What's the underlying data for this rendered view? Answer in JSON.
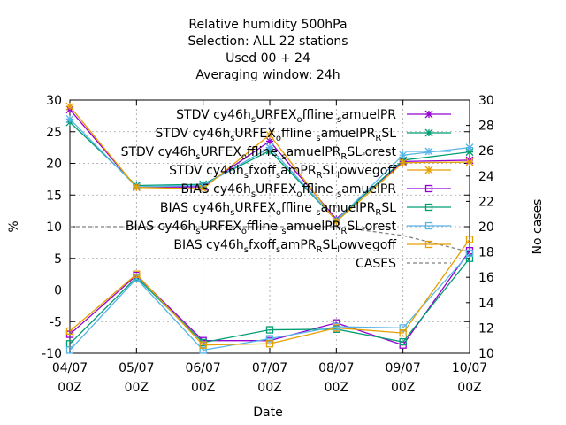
{
  "chart_data": {
    "type": "line",
    "title_lines": [
      "Relative humidity 500hPa",
      "Selection: ALL      22 stations",
      "Used  00 + 24",
      "Averaging window: 24h"
    ],
    "xlabel": "Date",
    "ylabel": "%",
    "y2label": "No cases",
    "categories": [
      [
        "04/07",
        "00Z"
      ],
      [
        "05/07",
        "00Z"
      ],
      [
        "06/07",
        "00Z"
      ],
      [
        "07/07",
        "00Z"
      ],
      [
        "08/07",
        "00Z"
      ],
      [
        "09/07",
        "00Z"
      ],
      [
        "10/07",
        "00Z"
      ]
    ],
    "ylim": [
      -10,
      30
    ],
    "yticks": [
      -10,
      -5,
      0,
      5,
      10,
      15,
      20,
      25,
      30
    ],
    "y2lim": [
      10,
      30
    ],
    "y2ticks": [
      10,
      12,
      14,
      16,
      18,
      20,
      22,
      24,
      26,
      28,
      30
    ],
    "grid": true,
    "legend_position": "top-right",
    "series": [
      {
        "name": "STDV cy46h_sURFEX_offline_samuelPR",
        "color": "#9400d3",
        "marker": "star",
        "dash": "",
        "axis": "y",
        "values": [
          28.5,
          16.2,
          16.3,
          23.5,
          11.2,
          20.3,
          20.5
        ]
      },
      {
        "name": "STDV cy46h_sURFEX_offline_samuelPR_RSL",
        "color": "#009e73",
        "marker": "star",
        "dash": "",
        "axis": "y",
        "values": [
          26.5,
          16.5,
          16.7,
          22.0,
          11.0,
          20.5,
          21.8
        ]
      },
      {
        "name": "STDV cy46h_sURFEX_offline_samuelPR_RSL_forest",
        "color": "#56b4e9",
        "marker": "star",
        "dash": "",
        "axis": "y",
        "values": [
          27.0,
          16.3,
          16.5,
          22.5,
          11.0,
          21.3,
          22.5
        ]
      },
      {
        "name": "STDV cy46h_sfxoff_samPR_RSL_lowvegoff",
        "color": "#e69f00",
        "marker": "star",
        "dash": "",
        "axis": "y",
        "values": [
          29.0,
          16.2,
          16.0,
          24.5,
          10.8,
          20.1,
          20.2
        ]
      },
      {
        "name": "BIAS cy46h_sURFEX_offline_samuelPR",
        "color": "#9400d3",
        "marker": "square",
        "dash": "",
        "axis": "y",
        "values": [
          -7.0,
          2.3,
          -8.0,
          -8.0,
          -5.2,
          -8.7,
          6.2
        ]
      },
      {
        "name": "BIAS cy46h_sURFEX_offline_samuelPR_RSL",
        "color": "#009e73",
        "marker": "square",
        "dash": "",
        "axis": "y",
        "values": [
          -8.5,
          2.0,
          -8.3,
          -6.3,
          -6.2,
          -8.2,
          5.0
        ]
      },
      {
        "name": "BIAS cy46h_sURFEX_offline_samuelPR_RSL_forest",
        "color": "#56b4e9",
        "marker": "square",
        "dash": "",
        "axis": "y",
        "values": [
          -9.5,
          1.8,
          -9.5,
          -7.7,
          -5.8,
          -6.0,
          5.8
        ]
      },
      {
        "name": "BIAS cy46h_sfxoff_samPR_RSL_lowvegoff",
        "color": "#e69f00",
        "marker": "square",
        "dash": "",
        "axis": "y",
        "values": [
          -6.5,
          2.5,
          -8.7,
          -8.5,
          -6.0,
          -6.8,
          8.0
        ]
      },
      {
        "name": "CASES",
        "color": "#808080",
        "marker": "none",
        "dash": "4,3",
        "axis": "y2",
        "values": [
          20,
          20,
          20,
          20,
          20,
          19.3,
          18
        ]
      }
    ]
  },
  "legend": [
    {
      "base": "STDV cy46h",
      "parts": [
        [
          "s",
          "URFEX"
        ],
        [
          "o",
          "ffline "
        ],
        [
          "s",
          "amuelPR"
        ]
      ]
    },
    {
      "base": "STDV cy46h",
      "parts": [
        [
          "s",
          "URFEX"
        ],
        [
          "o",
          "ffline "
        ],
        [
          "s",
          "amuelPR"
        ],
        [
          "R",
          "SL"
        ]
      ]
    },
    {
      "base": "STDV cy46h",
      "parts": [
        [
          "s",
          "URFEX"
        ],
        [
          "o",
          "ffline "
        ],
        [
          "s",
          "amuelPR"
        ],
        [
          "R",
          "SL"
        ],
        [
          "f",
          "orest"
        ]
      ]
    },
    {
      "base": "STDV cy46h",
      "parts": [
        [
          "s",
          "fxoff"
        ],
        [
          "s",
          "amPR"
        ],
        [
          "R",
          "SL"
        ],
        [
          "l",
          "owvegoff"
        ]
      ]
    },
    {
      "base": "BIAS cy46h",
      "parts": [
        [
          "s",
          "URFEX"
        ],
        [
          "o",
          "ffline "
        ],
        [
          "s",
          "amuelPR"
        ]
      ]
    },
    {
      "base": "BIAS cy46h",
      "parts": [
        [
          "s",
          "URFEX"
        ],
        [
          "o",
          "ffline "
        ],
        [
          "s",
          "amuelPR"
        ],
        [
          "R",
          "SL"
        ]
      ]
    },
    {
      "base": "BIAS cy46h",
      "parts": [
        [
          "s",
          "URFEX"
        ],
        [
          "o",
          "ffline "
        ],
        [
          "s",
          "amuelPR"
        ],
        [
          "R",
          "SL"
        ],
        [
          "f",
          "orest"
        ]
      ]
    },
    {
      "base": "BIAS cy46h",
      "parts": [
        [
          "s",
          "fxoff"
        ],
        [
          "s",
          "amPR"
        ],
        [
          "R",
          "SL"
        ],
        [
          "l",
          "owvegoff"
        ]
      ]
    },
    {
      "base": "CASES",
      "parts": []
    }
  ]
}
